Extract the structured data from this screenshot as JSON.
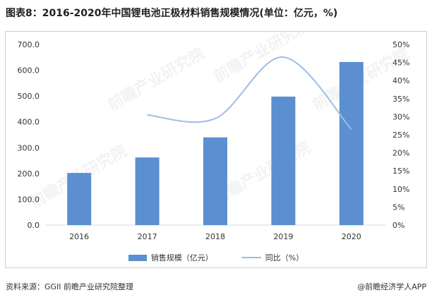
{
  "header": {
    "title": "图表8：2016-2020年中国锂电池正极材料销售规模情况(单位：亿元，%)"
  },
  "footer": {
    "source": "资料来源：GGII 前瞻产业研究院整理",
    "credit": "@前瞻经济学人APP"
  },
  "watermark": {
    "text": "前瞻产业研究院"
  },
  "colors": {
    "bar": "#5b8fd1",
    "line": "#9dbde6",
    "axis": "#d9d9d9"
  },
  "chart_data": {
    "type": "bar",
    "categories": [
      "2016",
      "2017",
      "2018",
      "2019",
      "2020"
    ],
    "series": [
      {
        "name": "销售规模（亿元）",
        "type": "bar",
        "axis": "left",
        "values": [
          202,
          262,
          340,
          498,
          632
        ]
      },
      {
        "name": "同比（%）",
        "type": "line",
        "axis": "right",
        "smooth": true,
        "values": [
          null,
          30.5,
          29.5,
          46.5,
          26.5
        ]
      }
    ],
    "y_left": {
      "range": [
        0,
        700
      ],
      "ticks": [
        "0.0",
        "100.0",
        "200.0",
        "300.0",
        "400.0",
        "500.0",
        "600.0",
        "700.0"
      ]
    },
    "y_right": {
      "range": [
        0,
        50
      ],
      "ticks": [
        "0%",
        "5%",
        "10%",
        "15%",
        "20%",
        "25%",
        "30%",
        "35%",
        "40%",
        "45%",
        "50%"
      ]
    },
    "grid": false,
    "legend_position": "bottom"
  }
}
